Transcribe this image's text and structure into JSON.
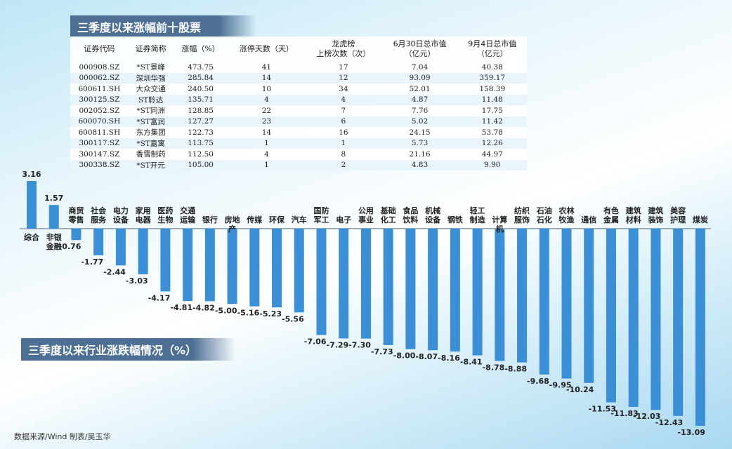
{
  "table": {
    "title": "三季度以来涨幅前十股票",
    "columns": [
      [
        "证券代码"
      ],
      [
        "证券简称"
      ],
      [
        "涨幅（%）"
      ],
      [
        "涨停天数（天）"
      ],
      [
        "龙虎榜",
        "上榜次数（次）"
      ],
      [
        "6月30日总市值",
        "（亿元）"
      ],
      [
        "9月4日总市值",
        "（亿元）"
      ]
    ],
    "rows": [
      [
        "000908.SZ",
        "*ST景峰",
        "473.75",
        "41",
        "17",
        "7.04",
        "40.38"
      ],
      [
        "000062.SZ",
        "深圳华强",
        "285.84",
        "14",
        "12",
        "93.09",
        "359.17"
      ],
      [
        "600611.SH",
        "大众交通",
        "240.50",
        "10",
        "34",
        "52.01",
        "158.39"
      ],
      [
        "300125.SZ",
        "ST聆达",
        "135.71",
        "4",
        "4",
        "4.87",
        "11.48"
      ],
      [
        "002052.SZ",
        "*ST同洲",
        "128.85",
        "22",
        "7",
        "7.76",
        "17.75"
      ],
      [
        "600070.SH",
        "*ST富润",
        "127.27",
        "23",
        "6",
        "5.02",
        "11.42"
      ],
      [
        "600811.SH",
        "东方集团",
        "122.73",
        "14",
        "16",
        "24.15",
        "53.78"
      ],
      [
        "300117.SZ",
        "*ST嘉寓",
        "113.75",
        "1",
        "1",
        "5.73",
        "12.26"
      ],
      [
        "300147.SZ",
        "香雪制药",
        "112.50",
        "4",
        "8",
        "21.16",
        "44.97"
      ],
      [
        "300338.SZ",
        "*ST开元",
        "105.00",
        "1",
        "2",
        "4.83",
        "9.90"
      ]
    ]
  },
  "chart_data": {
    "type": "bar",
    "title": "三季度以来行业涨跌幅情况（%）",
    "color": "#3a8fd6",
    "categories": [
      "综合",
      "非银金融",
      "商贸零售",
      "社会服务",
      "电力设备",
      "家用电器",
      "医药生物",
      "交通运输",
      "银行",
      "房地产",
      "传媒",
      "环保",
      "汽车",
      "国防军工",
      "电子",
      "公用事业",
      "基础化工",
      "食品饮料",
      "机械设备",
      "钢铁",
      "轻工制造",
      "计算机",
      "纺织服饰",
      "石油石化",
      "农林牧渔",
      "通信",
      "有色金属",
      "建筑材料",
      "建筑装饰",
      "美容护理",
      "煤炭"
    ],
    "values": [
      3.16,
      1.57,
      -0.76,
      -1.77,
      -2.44,
      -3.03,
      -4.17,
      -4.81,
      -4.82,
      -5,
      -5.16,
      -5.23,
      -5.56,
      -7.06,
      -7.29,
      -7.3,
      -7.73,
      -8,
      -8.07,
      -8.16,
      -8.41,
      -8.78,
      -8.88,
      -9.68,
      -9.95,
      -10.24,
      -11.53,
      -11.83,
      -12.03,
      -12.43,
      -13.09
    ],
    "value_labels": [
      "3.16",
      "1.57",
      "-0.76",
      "-1.77",
      "-2.44",
      "-3.03",
      "-4.17",
      "-4.81",
      "-4.82",
      "-5.00",
      "-5.16",
      "-5.23",
      "-5.56",
      "-7.06",
      "-7.29",
      "-7.30",
      "-7.73",
      "-8.00",
      "-8.07",
      "-8.16",
      "-8.41",
      "-8.78",
      "-8.88",
      "-9.68",
      "-9.95",
      "-10.24",
      "-11.53",
      "-11.83",
      "-12.03",
      "-12.43",
      "-13.09"
    ]
  },
  "footer": "数据来源/Wind  制表/吴玉华"
}
